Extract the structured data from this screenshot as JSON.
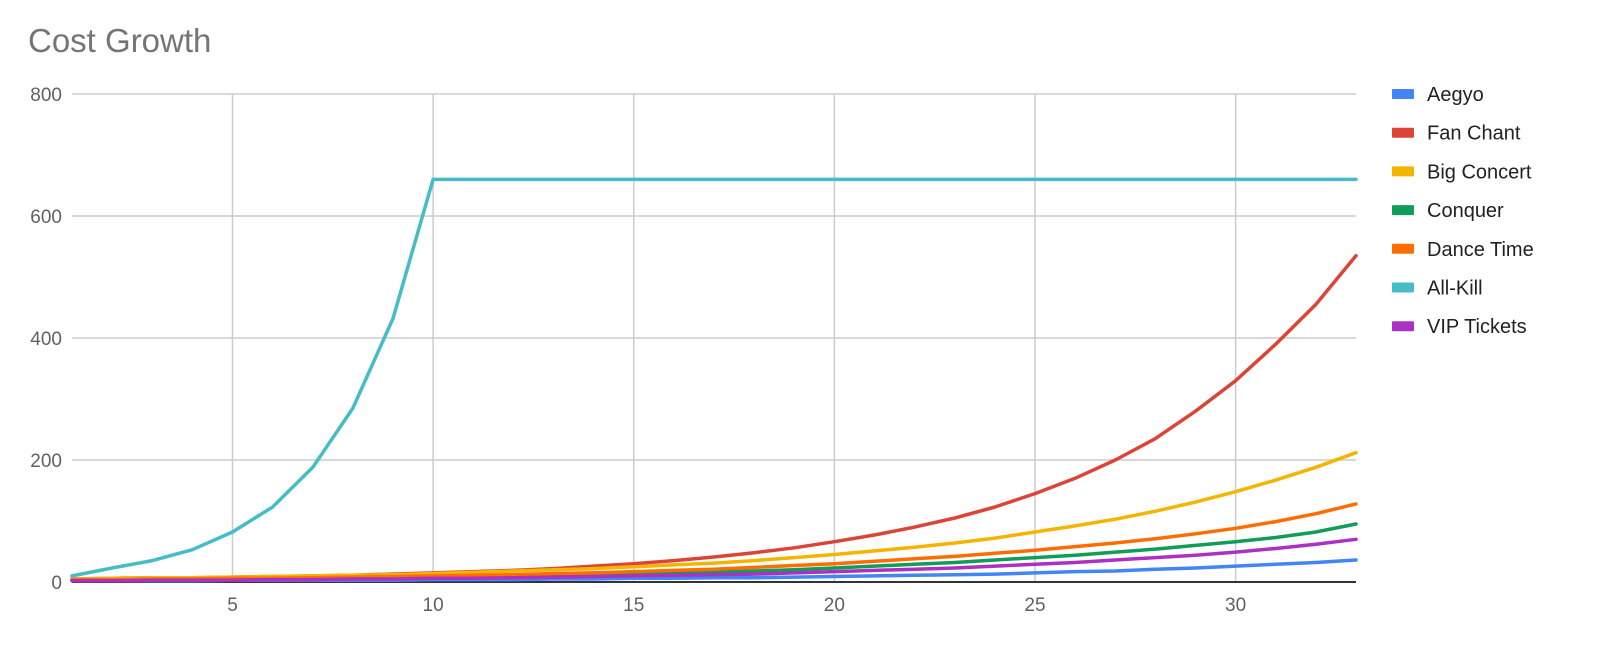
{
  "chart_data": {
    "type": "line",
    "title": "Cost Growth",
    "xlabel": "",
    "ylabel": "",
    "xlim": [
      1,
      33
    ],
    "ylim": [
      0,
      800
    ],
    "xticks": [
      5,
      10,
      15,
      20,
      25,
      30
    ],
    "yticks": [
      0,
      200,
      400,
      600,
      800
    ],
    "grid": true,
    "legend": "right",
    "x": [
      1,
      2,
      3,
      4,
      5,
      6,
      7,
      8,
      9,
      10,
      11,
      12,
      13,
      14,
      15,
      16,
      17,
      18,
      19,
      20,
      21,
      22,
      23,
      24,
      25,
      26,
      27,
      28,
      29,
      30,
      31,
      32,
      33
    ],
    "series": [
      {
        "name": "Aegyo",
        "color": "#4285F4",
        "values": [
          2,
          2,
          2,
          2,
          3,
          3,
          3,
          3,
          3,
          4,
          4,
          4,
          5,
          5,
          6,
          6,
          7,
          7,
          8,
          9,
          10,
          11,
          12,
          13,
          15,
          17,
          18,
          21,
          23,
          26,
          29,
          32,
          36
        ]
      },
      {
        "name": "Fan Chant",
        "color": "#DB4437",
        "values": [
          5,
          6,
          7,
          7,
          8,
          9,
          10,
          11,
          13,
          15,
          17,
          19,
          22,
          26,
          30,
          35,
          41,
          48,
          56,
          66,
          77,
          90,
          105,
          123,
          145,
          170,
          200,
          235,
          280,
          330,
          390,
          455,
          535
        ]
      },
      {
        "name": "Big Concert",
        "color": "#F4B400",
        "values": [
          5,
          6,
          7,
          7,
          8,
          9,
          10,
          11,
          12,
          14,
          16,
          18,
          20,
          22,
          25,
          28,
          31,
          35,
          40,
          45,
          51,
          57,
          64,
          72,
          82,
          92,
          103,
          116,
          131,
          148,
          167,
          188,
          212
        ]
      },
      {
        "name": "Conquer",
        "color": "#0F9D58",
        "values": [
          3,
          3,
          4,
          4,
          5,
          5,
          6,
          6,
          7,
          8,
          9,
          10,
          11,
          12,
          13,
          15,
          16,
          18,
          20,
          23,
          26,
          29,
          32,
          36,
          40,
          44,
          49,
          54,
          60,
          66,
          73,
          82,
          95
        ]
      },
      {
        "name": "Dance Time",
        "color": "#FF6D00",
        "values": [
          4,
          4,
          5,
          5,
          6,
          6,
          7,
          8,
          9,
          10,
          11,
          12,
          14,
          15,
          17,
          19,
          21,
          24,
          27,
          30,
          34,
          38,
          42,
          47,
          52,
          58,
          64,
          71,
          79,
          88,
          99,
          112,
          128
        ]
      },
      {
        "name": "All-Kill",
        "color": "#46BDC6",
        "values": [
          10,
          23,
          35,
          53,
          82,
          123,
          188,
          285,
          432,
          660,
          660,
          660,
          660,
          660,
          660,
          660,
          660,
          660,
          660,
          660,
          660,
          660,
          660,
          660,
          660,
          660,
          660,
          660,
          660,
          660,
          660,
          660,
          660
        ]
      },
      {
        "name": "VIP Tickets",
        "color": "#AB30C4",
        "values": [
          2,
          2,
          3,
          3,
          3,
          4,
          4,
          5,
          5,
          6,
          6,
          7,
          8,
          9,
          10,
          11,
          12,
          13,
          15,
          17,
          19,
          21,
          23,
          26,
          29,
          32,
          36,
          40,
          44,
          49,
          55,
          62,
          70
        ]
      }
    ]
  }
}
